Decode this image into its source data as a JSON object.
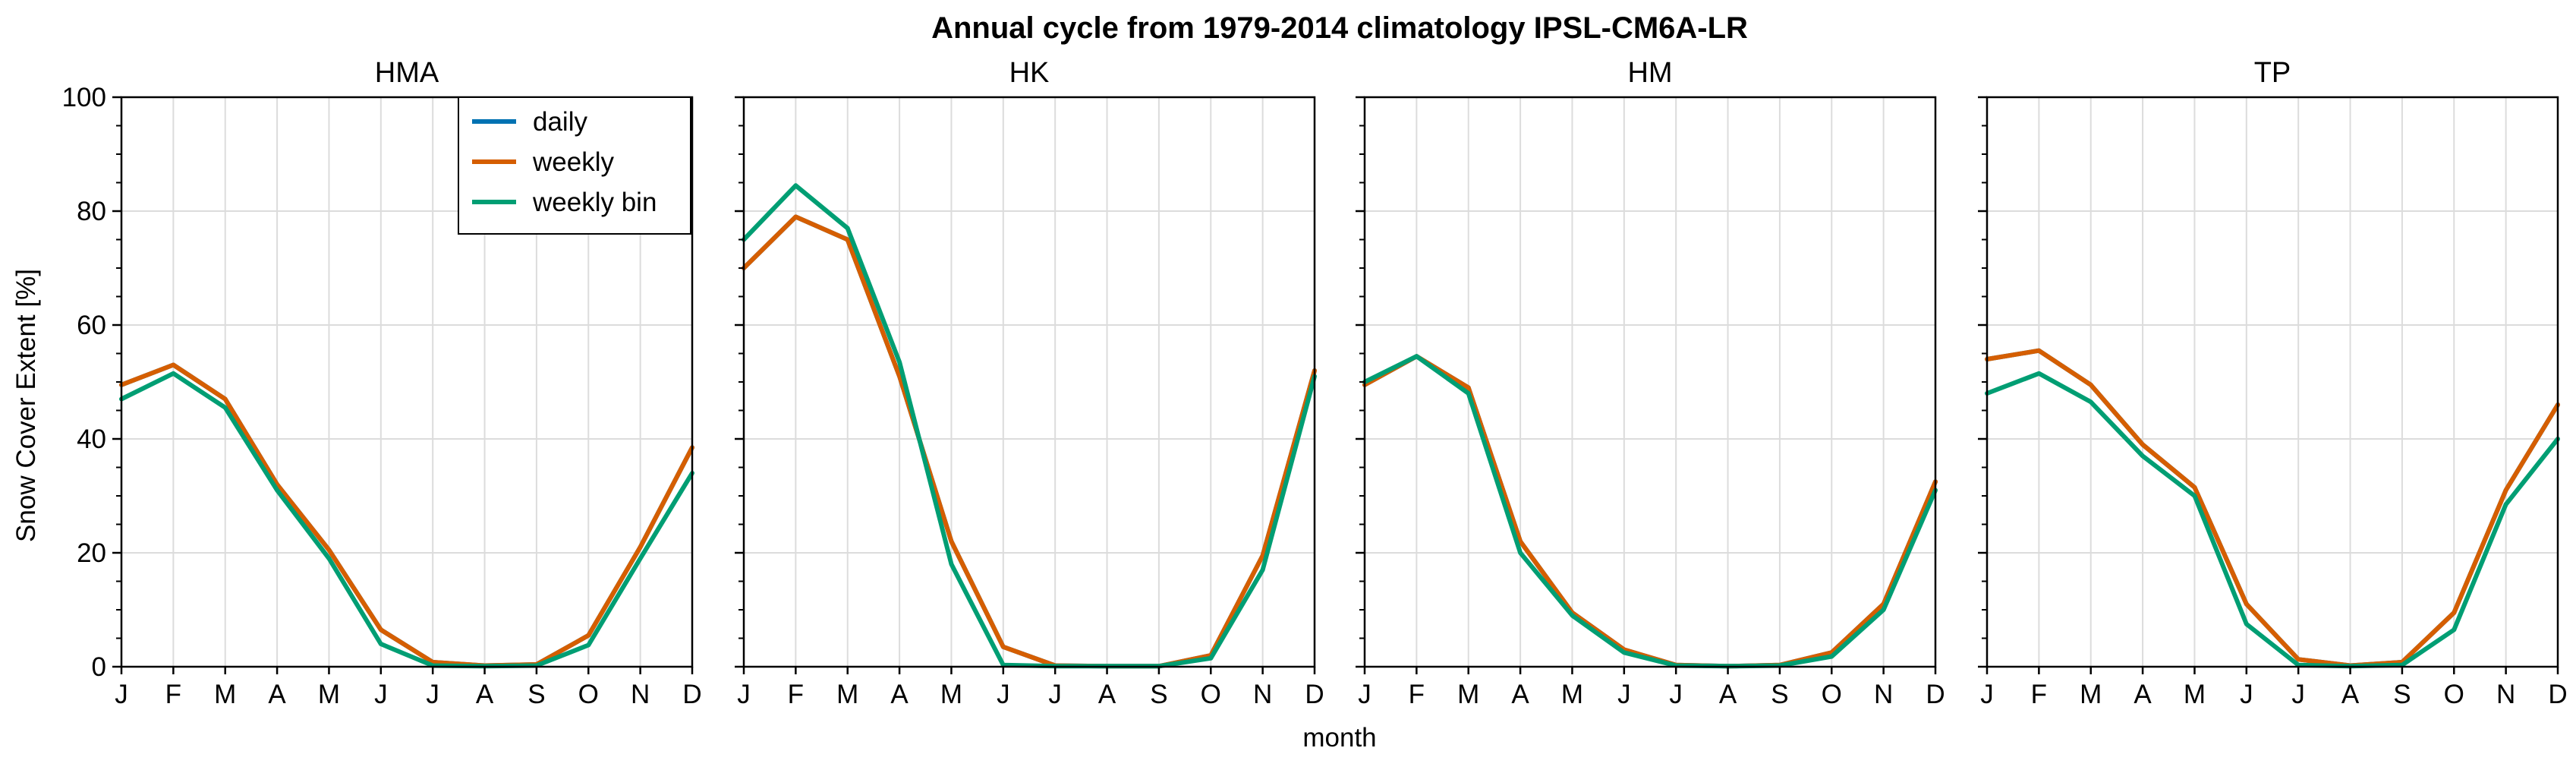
{
  "figure": {
    "title": "Annual cycle from 1979-2014 climatology IPSL-CM6A-LR",
    "xlabel": "month",
    "ylabel": "Snow Cover Extent [%]"
  },
  "chart_data": [
    {
      "type": "line",
      "title": "HMA",
      "xlabel": "month",
      "ylabel": "Snow Cover Extent [%]",
      "categories": [
        "J",
        "F",
        "M",
        "A",
        "M",
        "J",
        "J",
        "A",
        "S",
        "O",
        "N",
        "D"
      ],
      "ylim": [
        0,
        100
      ],
      "yticks": [
        0,
        20,
        40,
        60,
        80,
        100
      ],
      "grid": true,
      "legend": "top-right",
      "series": [
        {
          "name": "daily",
          "color": "#0072b2",
          "values": [
            49.5,
            53,
            47,
            32,
            20.5,
            6.5,
            0.8,
            0.2,
            0.4,
            5.5,
            21,
            38.5
          ]
        },
        {
          "name": "weekly",
          "color": "#d55e00",
          "values": [
            49.5,
            53,
            47,
            32,
            20.5,
            6.5,
            0.8,
            0.2,
            0.4,
            5.5,
            21,
            38.5
          ]
        },
        {
          "name": "weekly bin",
          "color": "#009e73",
          "values": [
            47,
            51.5,
            45.5,
            31,
            19,
            4,
            0.2,
            0.1,
            0.2,
            3.8,
            19,
            34
          ]
        }
      ]
    },
    {
      "type": "line",
      "title": "HK",
      "xlabel": "month",
      "categories": [
        "J",
        "F",
        "M",
        "A",
        "M",
        "J",
        "J",
        "A",
        "S",
        "O",
        "N",
        "D"
      ],
      "ylim": [
        0,
        100
      ],
      "grid": true,
      "series": [
        {
          "name": "daily",
          "color": "#0072b2",
          "values": [
            70,
            79,
            75,
            51,
            22,
            3.5,
            0.2,
            0.1,
            0.1,
            2,
            19.5,
            52
          ]
        },
        {
          "name": "weekly",
          "color": "#d55e00",
          "values": [
            70,
            79,
            75,
            51,
            22,
            3.5,
            0.2,
            0.1,
            0.1,
            2,
            19.5,
            52
          ]
        },
        {
          "name": "weekly bin",
          "color": "#009e73",
          "values": [
            75,
            84.5,
            77,
            53.5,
            18,
            0.3,
            0.1,
            0.1,
            0.1,
            1.5,
            17,
            51
          ]
        }
      ]
    },
    {
      "type": "line",
      "title": "HM",
      "xlabel": "month",
      "categories": [
        "J",
        "F",
        "M",
        "A",
        "M",
        "J",
        "J",
        "A",
        "S",
        "O",
        "N",
        "D"
      ],
      "ylim": [
        0,
        100
      ],
      "grid": true,
      "series": [
        {
          "name": "daily",
          "color": "#0072b2",
          "values": [
            49.5,
            54.5,
            49,
            22,
            9.5,
            3,
            0.3,
            0.1,
            0.3,
            2.5,
            11,
            32.5
          ]
        },
        {
          "name": "weekly",
          "color": "#d55e00",
          "values": [
            49.5,
            54.5,
            49,
            22,
            9.5,
            3,
            0.3,
            0.1,
            0.3,
            2.5,
            11,
            32.5
          ]
        },
        {
          "name": "weekly bin",
          "color": "#009e73",
          "values": [
            50,
            54.5,
            48,
            20,
            9,
            2.5,
            0.2,
            0.1,
            0.2,
            1.8,
            10,
            31
          ]
        }
      ]
    },
    {
      "type": "line",
      "title": "TP",
      "xlabel": "month",
      "categories": [
        "J",
        "F",
        "M",
        "A",
        "M",
        "J",
        "J",
        "A",
        "S",
        "O",
        "N",
        "D"
      ],
      "ylim": [
        0,
        100
      ],
      "grid": true,
      "series": [
        {
          "name": "daily",
          "color": "#0072b2",
          "values": [
            54,
            55.5,
            49.5,
            39,
            31.5,
            11,
            1.3,
            0.2,
            0.8,
            9.5,
            31,
            46
          ]
        },
        {
          "name": "weekly",
          "color": "#d55e00",
          "values": [
            54,
            55.5,
            49.5,
            39,
            31.5,
            11,
            1.3,
            0.2,
            0.8,
            9.5,
            31,
            46
          ]
        },
        {
          "name": "weekly bin",
          "color": "#009e73",
          "values": [
            48,
            51.5,
            46.5,
            37,
            30,
            7.5,
            0.3,
            0.1,
            0.3,
            6.5,
            28.5,
            40
          ]
        }
      ]
    }
  ]
}
